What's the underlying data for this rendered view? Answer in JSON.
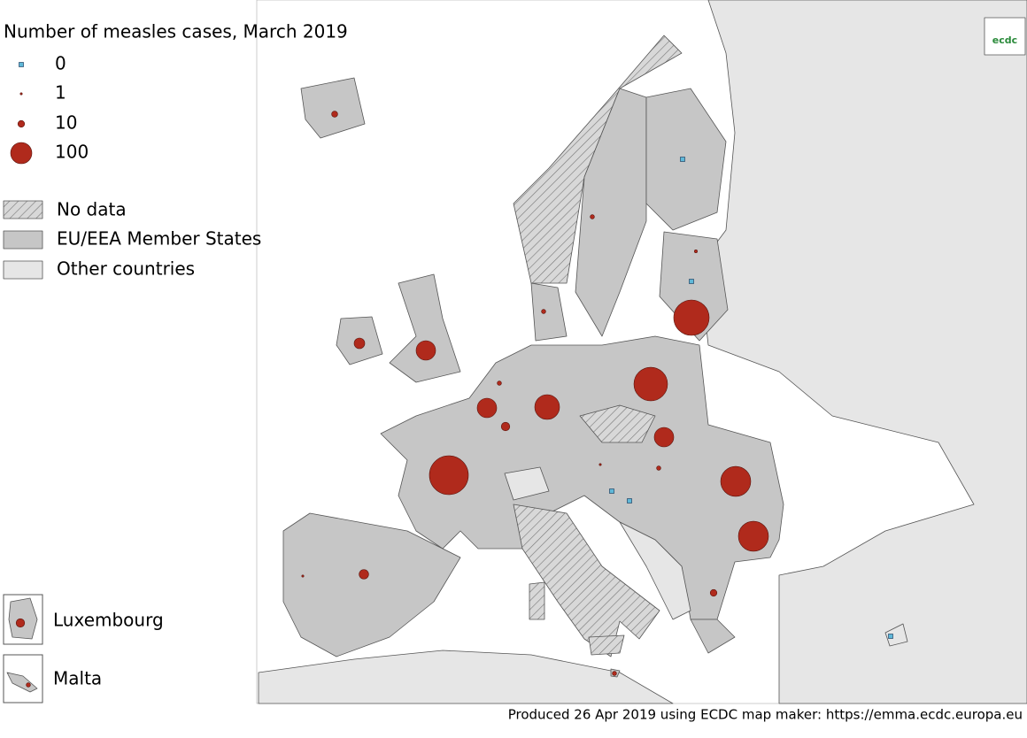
{
  "title": "Number of measles cases, March 2019",
  "chart_data": {
    "type": "bubble_map",
    "values": [
      336,
      278,
      250,
      200,
      200,
      136,
      84,
      84,
      84,
      25,
      20,
      16,
      10,
      8,
      4,
      4,
      4,
      4,
      2,
      4,
      1,
      1,
      0,
      0,
      0,
      0,
      0
    ],
    "size_legend": [
      0,
      1,
      10,
      100
    ],
    "bubble_color": "#b02a1c",
    "zero_color": "#5fb8d8"
  },
  "legend_areas": [
    "No data",
    "EU/EEA Member States",
    "Other countries"
  ],
  "insets": [
    "Luxembourg",
    "Malta"
  ],
  "logo_text": "ecdc",
  "footer": "Produced 26 Apr 2019 using ECDC map maker: https://emma.ecdc.europa.eu"
}
